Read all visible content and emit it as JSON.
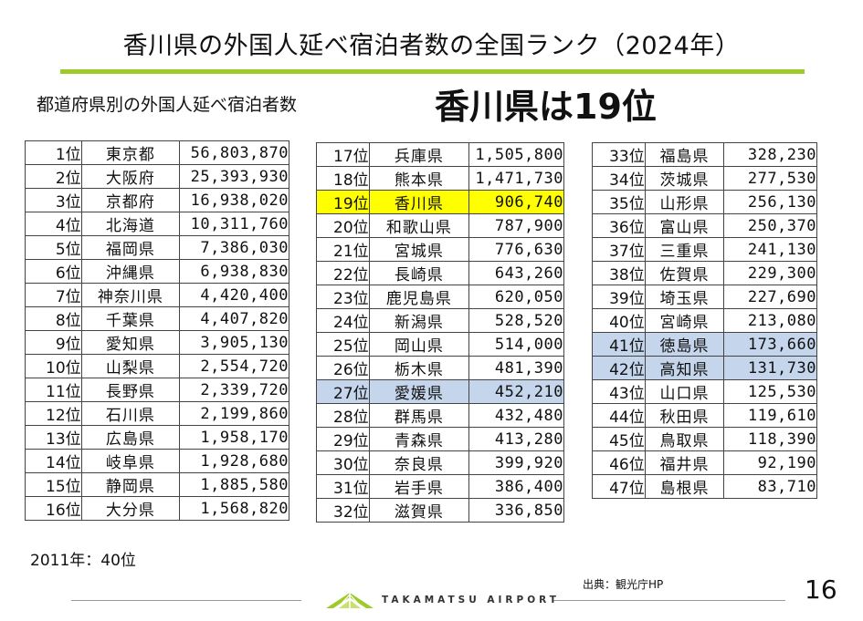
{
  "title": "香川県の外国人延べ宿泊者数の全国ランク（2024年）",
  "subtitle": "都道府県別の外国人延べ宿泊者数",
  "headline": "香川県は19位",
  "colors": {
    "accent_rule": "#9fcb2a",
    "highlight_kagawa": "#ffff00",
    "highlight_shikoku": "#c5d6ec"
  },
  "tables": [
    [
      {
        "rank": "1位",
        "pref": "東京都",
        "value": "56,803,870"
      },
      {
        "rank": "2位",
        "pref": "大阪府",
        "value": "25,393,930"
      },
      {
        "rank": "3位",
        "pref": "京都府",
        "value": "16,938,020"
      },
      {
        "rank": "4位",
        "pref": "北海道",
        "value": "10,311,760"
      },
      {
        "rank": "5位",
        "pref": "福岡県",
        "value": "7,386,030"
      },
      {
        "rank": "6位",
        "pref": "沖縄県",
        "value": "6,938,830"
      },
      {
        "rank": "7位",
        "pref": "神奈川県",
        "value": "4,420,400"
      },
      {
        "rank": "8位",
        "pref": "千葉県",
        "value": "4,407,820"
      },
      {
        "rank": "9位",
        "pref": "愛知県",
        "value": "3,905,130"
      },
      {
        "rank": "10位",
        "pref": "山梨県",
        "value": "2,554,720"
      },
      {
        "rank": "11位",
        "pref": "長野県",
        "value": "2,339,720"
      },
      {
        "rank": "12位",
        "pref": "石川県",
        "value": "2,199,860"
      },
      {
        "rank": "13位",
        "pref": "広島県",
        "value": "1,958,170"
      },
      {
        "rank": "14位",
        "pref": "岐阜県",
        "value": "1,928,680"
      },
      {
        "rank": "15位",
        "pref": "静岡県",
        "value": "1,885,580"
      },
      {
        "rank": "16位",
        "pref": "大分県",
        "value": "1,568,820"
      }
    ],
    [
      {
        "rank": "17位",
        "pref": "兵庫県",
        "value": "1,505,800"
      },
      {
        "rank": "18位",
        "pref": "熊本県",
        "value": "1,471,730"
      },
      {
        "rank": "19位",
        "pref": "香川県",
        "value": "906,740",
        "highlight": "yellow"
      },
      {
        "rank": "20位",
        "pref": "和歌山県",
        "value": "787,900"
      },
      {
        "rank": "21位",
        "pref": "宮城県",
        "value": "776,630"
      },
      {
        "rank": "22位",
        "pref": "長崎県",
        "value": "643,260"
      },
      {
        "rank": "23位",
        "pref": "鹿児島県",
        "value": "620,050"
      },
      {
        "rank": "24位",
        "pref": "新潟県",
        "value": "528,520"
      },
      {
        "rank": "25位",
        "pref": "岡山県",
        "value": "514,000"
      },
      {
        "rank": "26位",
        "pref": "栃木県",
        "value": "481,390"
      },
      {
        "rank": "27位",
        "pref": "愛媛県",
        "value": "452,210",
        "highlight": "blue"
      },
      {
        "rank": "28位",
        "pref": "群馬県",
        "value": "432,480"
      },
      {
        "rank": "29位",
        "pref": "青森県",
        "value": "413,280"
      },
      {
        "rank": "30位",
        "pref": "奈良県",
        "value": "399,920"
      },
      {
        "rank": "31位",
        "pref": "岩手県",
        "value": "386,400"
      },
      {
        "rank": "32位",
        "pref": "滋賀県",
        "value": "336,850"
      }
    ],
    [
      {
        "rank": "33位",
        "pref": "福島県",
        "value": "328,230"
      },
      {
        "rank": "34位",
        "pref": "茨城県",
        "value": "277,530"
      },
      {
        "rank": "35位",
        "pref": "山形県",
        "value": "256,130"
      },
      {
        "rank": "36位",
        "pref": "富山県",
        "value": "250,370"
      },
      {
        "rank": "37位",
        "pref": "三重県",
        "value": "241,130"
      },
      {
        "rank": "38位",
        "pref": "佐賀県",
        "value": "229,300"
      },
      {
        "rank": "39位",
        "pref": "埼玉県",
        "value": "227,690"
      },
      {
        "rank": "40位",
        "pref": "宮崎県",
        "value": "213,080"
      },
      {
        "rank": "41位",
        "pref": "徳島県",
        "value": "173,660",
        "highlight": "blue"
      },
      {
        "rank": "42位",
        "pref": "高知県",
        "value": "131,730",
        "highlight": "blue"
      },
      {
        "rank": "43位",
        "pref": "山口県",
        "value": "125,530"
      },
      {
        "rank": "44位",
        "pref": "秋田県",
        "value": "119,610"
      },
      {
        "rank": "45位",
        "pref": "鳥取県",
        "value": "118,390"
      },
      {
        "rank": "46位",
        "pref": "福井県",
        "value": "92,190"
      },
      {
        "rank": "47位",
        "pref": "島根県",
        "value": "83,710"
      }
    ]
  ],
  "note": "2011年：40位",
  "source": "出典：観光庁HP",
  "logo_text": "TAKAMATSU AIRPORT",
  "page_number": "16"
}
